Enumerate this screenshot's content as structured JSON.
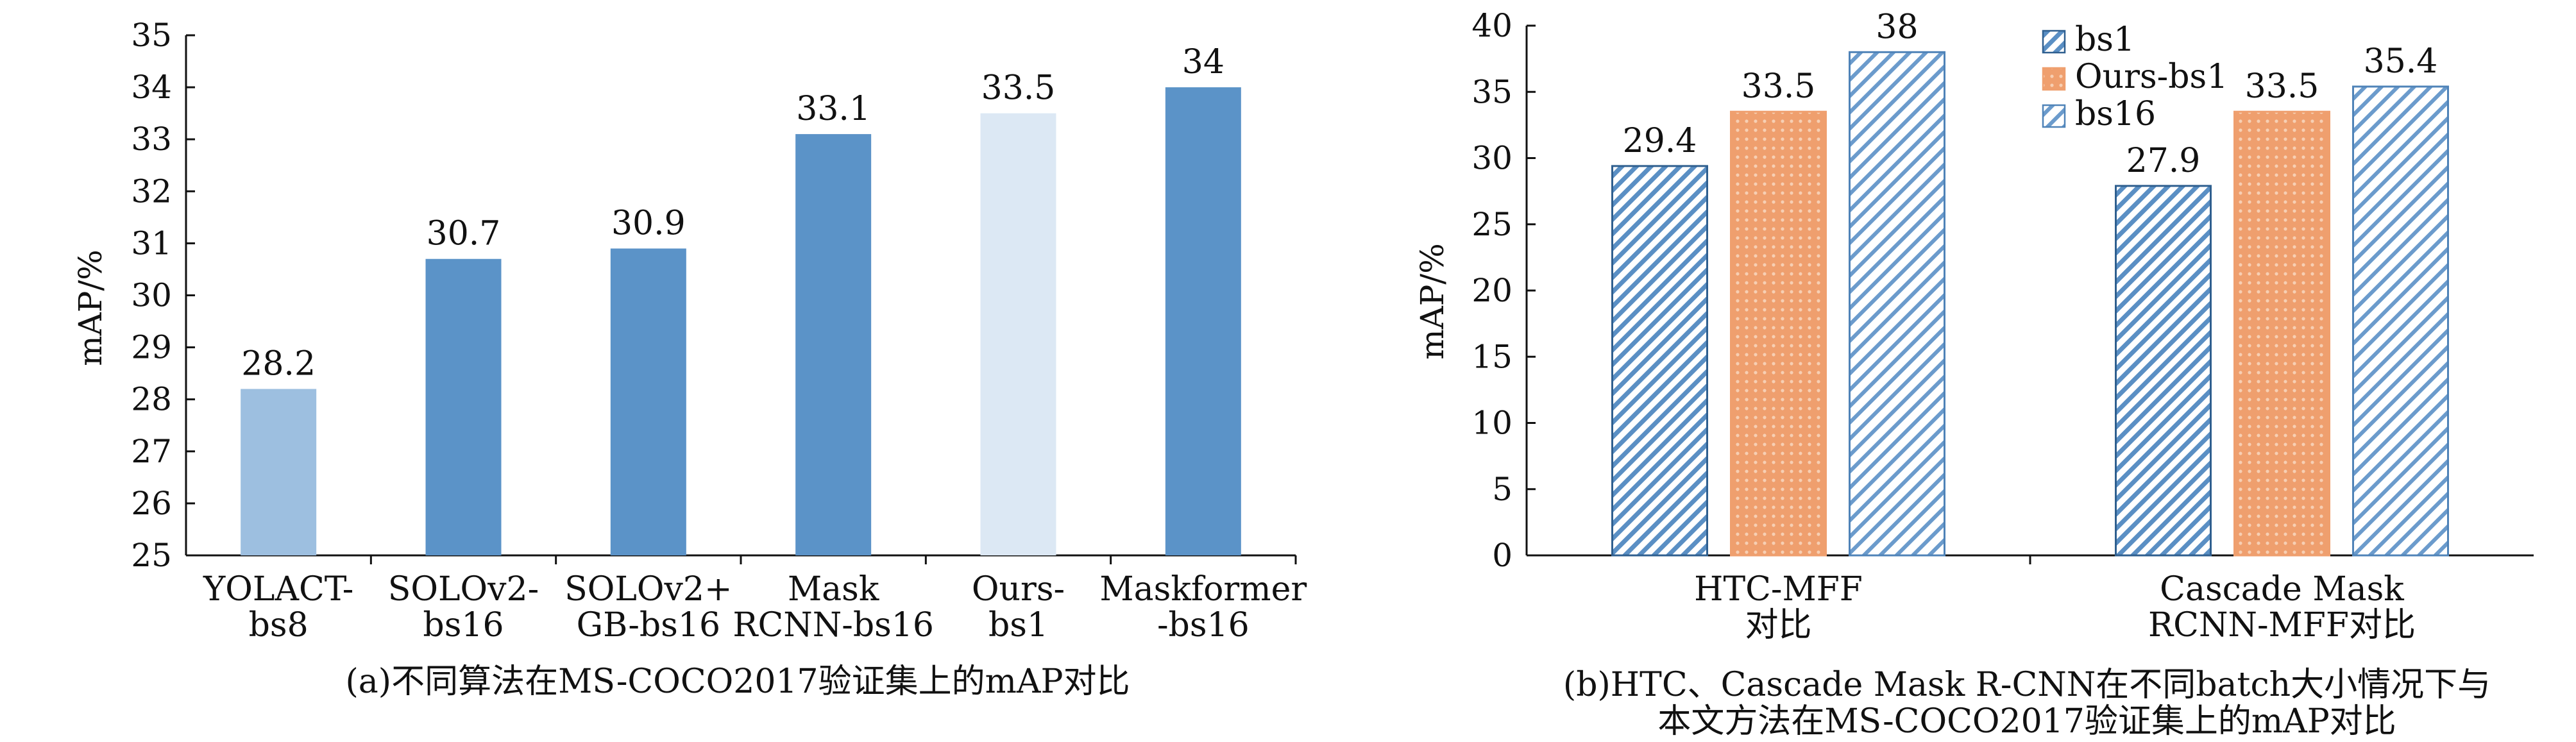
{
  "colors": {
    "axis": "#111111",
    "bar_default": "#5b93c8",
    "bar_light": "#9dbfe0",
    "bar_lightest": "#dce8f4",
    "hatch_blue": "#5a8fc4",
    "dots_orange": "#ef9f6e"
  },
  "chart_data": [
    {
      "type": "bar",
      "caption": "(a)不同算法在MS-COCO2017验证集上的mAP对比",
      "ylabel": "mAP/%",
      "ylim": [
        25,
        35
      ],
      "yticks": [
        "25",
        "26",
        "27",
        "28",
        "29",
        "30",
        "31",
        "32",
        "33",
        "34",
        "35"
      ],
      "categories": [
        [
          "YOLACT-",
          "bs8"
        ],
        [
          "SOLOv2-",
          "bs16"
        ],
        [
          "SOLOv2+",
          "GB-bs16"
        ],
        [
          "Mask",
          "RCNN-bs16"
        ],
        [
          "Ours-",
          "bs1"
        ],
        [
          "Maskformer",
          "-bs16"
        ]
      ],
      "values": [
        28.2,
        30.7,
        30.9,
        33.1,
        33.5,
        34
      ],
      "labels": [
        "28.2",
        "30.7",
        "30.9",
        "33.1",
        "33.5",
        "34"
      ],
      "bar_colors": [
        "#9dbfe0",
        "#5b93c8",
        "#5b93c8",
        "#5b93c8",
        "#dce8f4",
        "#5b93c8"
      ]
    },
    {
      "type": "bar",
      "caption": [
        "(b)HTC、Cascade Mask R-CNN在不同batch大小情况下与",
        "本文方法在MS-COCO2017验证集上的mAP对比"
      ],
      "ylabel": "mAP/%",
      "ylim": [
        0,
        40
      ],
      "yticks": [
        "0",
        "5",
        "10",
        "15",
        "20",
        "25",
        "30",
        "35",
        "40"
      ],
      "categories": [
        [
          "HTC-MFF",
          "对比"
        ],
        [
          "Cascade Mask",
          "RCNN-MFF对比"
        ]
      ],
      "series": [
        {
          "name": "bs1",
          "values": [
            29.4,
            27.9
          ],
          "labels": [
            "29.4",
            "27.9"
          ],
          "pattern": "hatchDense"
        },
        {
          "name": "Ours-bs1",
          "values": [
            33.5,
            33.5
          ],
          "labels": [
            "33.5",
            "33.5"
          ],
          "pattern": "dots"
        },
        {
          "name": "bs16",
          "values": [
            38,
            35.4
          ],
          "labels": [
            "38",
            "35.4"
          ],
          "pattern": "hatchSparse"
        }
      ],
      "legend_position": "top-right"
    }
  ]
}
